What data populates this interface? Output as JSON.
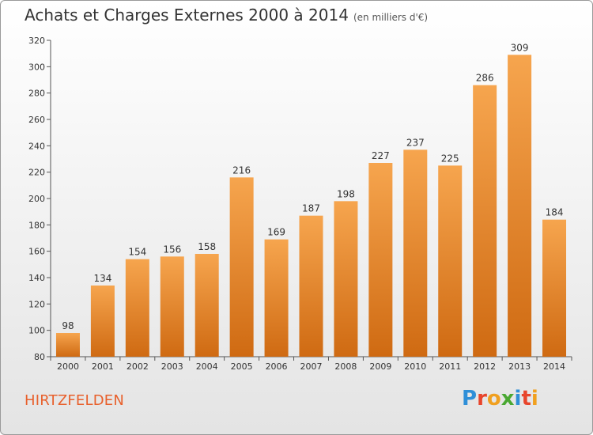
{
  "title": "Achats et Charges Externes 2000 à 2014",
  "unit": "(en milliers d'€)",
  "town": "HIRTZFELDEN",
  "logo": {
    "letters": [
      "P",
      "r",
      "o",
      "x",
      "i",
      "t",
      "i"
    ]
  },
  "colors": {
    "bar_top": "#f6a54e",
    "bar_bottom": "#cf6a12",
    "town": "#e8602c"
  },
  "chart_data": {
    "type": "bar",
    "categories": [
      "2000",
      "2001",
      "2002",
      "2003",
      "2004",
      "2005",
      "2006",
      "2007",
      "2008",
      "2009",
      "2010",
      "2011",
      "2012",
      "2013",
      "2014"
    ],
    "values": [
      98,
      134,
      154,
      156,
      158,
      216,
      169,
      187,
      198,
      227,
      237,
      225,
      286,
      309,
      184
    ],
    "ylim": [
      80,
      320
    ],
    "yticks": [
      80,
      100,
      120,
      140,
      160,
      180,
      200,
      220,
      240,
      260,
      280,
      300,
      320
    ],
    "grid": false,
    "legend": "none"
  }
}
